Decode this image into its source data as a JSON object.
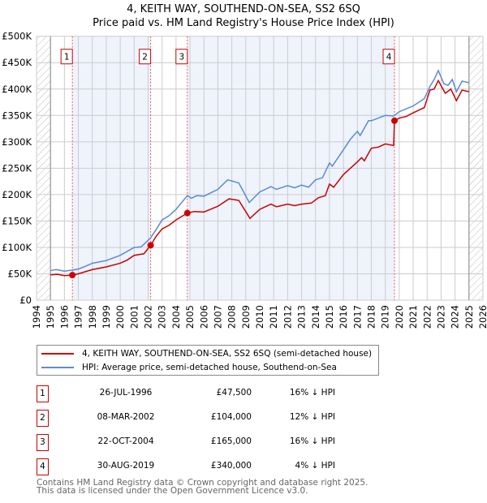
{
  "title_line1": "4, KEITH WAY, SOUTHEND-ON-SEA, SS2 6SQ",
  "title_line2": "Price paid vs. HM Land Registry's House Price Index (HPI)",
  "chart_data": {
    "type": "line",
    "ylim": [
      0,
      500000
    ],
    "xlim": [
      1994,
      2026
    ],
    "yticks": [
      {
        "v": 0,
        "label": "£0"
      },
      {
        "v": 50000,
        "label": "£50K"
      },
      {
        "v": 100000,
        "label": "£100K"
      },
      {
        "v": 150000,
        "label": "£150K"
      },
      {
        "v": 200000,
        "label": "£200K"
      },
      {
        "v": 250000,
        "label": "£250K"
      },
      {
        "v": 300000,
        "label": "£300K"
      },
      {
        "v": 350000,
        "label": "£350K"
      },
      {
        "v": 400000,
        "label": "£400K"
      },
      {
        "v": 450000,
        "label": "£450K"
      },
      {
        "v": 500000,
        "label": "£500K"
      }
    ],
    "xticks": [
      "1994",
      "1995",
      "1996",
      "1997",
      "1998",
      "1999",
      "2000",
      "2001",
      "2002",
      "2003",
      "2004",
      "2005",
      "2006",
      "2007",
      "2008",
      "2009",
      "2010",
      "2011",
      "2012",
      "2013",
      "2014",
      "2015",
      "2016",
      "2017",
      "2018",
      "2019",
      "2020",
      "2021",
      "2022",
      "2023",
      "2024",
      "2025",
      "2026"
    ],
    "series": [
      {
        "name": "4, KEITH WAY, SOUTHEND-ON-SEA, SS2 6SQ (semi-detached house)",
        "color": "#cc0000",
        "points": [
          [
            1995,
            48000
          ],
          [
            1995.5,
            49000
          ],
          [
            1996,
            46500
          ],
          [
            1996.57,
            47500
          ],
          [
            1997,
            50000
          ],
          [
            1997.5,
            54000
          ],
          [
            1998,
            58000
          ],
          [
            1999,
            63000
          ],
          [
            2000,
            70000
          ],
          [
            2000.5,
            76000
          ],
          [
            2001,
            85000
          ],
          [
            2001.7,
            88000
          ],
          [
            2002.18,
            104000
          ],
          [
            2002.6,
            122000
          ],
          [
            2003,
            135000
          ],
          [
            2003.5,
            142000
          ],
          [
            2004,
            152000
          ],
          [
            2004.5,
            160000
          ],
          [
            2004.81,
            165000
          ],
          [
            2005.3,
            168000
          ],
          [
            2006,
            167000
          ],
          [
            2007,
            178000
          ],
          [
            2007.8,
            192000
          ],
          [
            2008.5,
            189000
          ],
          [
            2009.3,
            155000
          ],
          [
            2010,
            172000
          ],
          [
            2010.8,
            182000
          ],
          [
            2011.2,
            177000
          ],
          [
            2012,
            182000
          ],
          [
            2012.5,
            179000
          ],
          [
            2013,
            182000
          ],
          [
            2013.7,
            184000
          ],
          [
            2014.2,
            194000
          ],
          [
            2014.7,
            198000
          ],
          [
            2015,
            220000
          ],
          [
            2015.3,
            214000
          ],
          [
            2016,
            238000
          ],
          [
            2016.5,
            250000
          ],
          [
            2017,
            262000
          ],
          [
            2017.3,
            270000
          ],
          [
            2017.5,
            264000
          ],
          [
            2018,
            288000
          ],
          [
            2018.5,
            290000
          ],
          [
            2019,
            296000
          ],
          [
            2019.6,
            293000
          ],
          [
            2019.66,
            340000
          ],
          [
            2020,
            345000
          ],
          [
            2020.5,
            348000
          ],
          [
            2021,
            355000
          ],
          [
            2021.8,
            365000
          ],
          [
            2022.2,
            398000
          ],
          [
            2022.5,
            400000
          ],
          [
            2022.8,
            416000
          ],
          [
            2023.3,
            392000
          ],
          [
            2023.7,
            400000
          ],
          [
            2024.1,
            378000
          ],
          [
            2024.5,
            398000
          ],
          [
            2025,
            395000
          ]
        ]
      },
      {
        "name": "HPI: Average price, semi-detached house, Southend-on-Sea",
        "color": "#5b8bd0",
        "points": [
          [
            1995,
            56000
          ],
          [
            1995.4,
            58000
          ],
          [
            1996,
            55000
          ],
          [
            1996.57,
            57000
          ],
          [
            1997,
            59000
          ],
          [
            1997.5,
            64000
          ],
          [
            1998,
            70000
          ],
          [
            1999,
            75000
          ],
          [
            2000,
            85000
          ],
          [
            2001,
            100000
          ],
          [
            2001.5,
            101000
          ],
          [
            2002.18,
            118000
          ],
          [
            2002.6,
            135000
          ],
          [
            2003,
            152000
          ],
          [
            2003.5,
            160000
          ],
          [
            2004,
            172000
          ],
          [
            2004.81,
            198000
          ],
          [
            2005.1,
            193000
          ],
          [
            2005.5,
            198000
          ],
          [
            2006,
            197000
          ],
          [
            2007,
            210000
          ],
          [
            2007.7,
            228000
          ],
          [
            2008.5,
            222000
          ],
          [
            2009.25,
            185000
          ],
          [
            2010,
            205000
          ],
          [
            2010.8,
            215000
          ],
          [
            2011.2,
            210000
          ],
          [
            2012,
            217000
          ],
          [
            2012.5,
            213000
          ],
          [
            2013,
            218000
          ],
          [
            2013.5,
            214000
          ],
          [
            2014,
            228000
          ],
          [
            2014.5,
            232000
          ],
          [
            2015,
            260000
          ],
          [
            2015.2,
            254000
          ],
          [
            2016,
            285000
          ],
          [
            2016.5,
            305000
          ],
          [
            2017,
            320000
          ],
          [
            2017.2,
            312000
          ],
          [
            2017.8,
            340000
          ],
          [
            2018,
            340000
          ],
          [
            2018.5,
            345000
          ],
          [
            2019,
            350000
          ],
          [
            2019.6,
            349000
          ],
          [
            2020,
            357000
          ],
          [
            2021,
            368000
          ],
          [
            2021.8,
            382000
          ],
          [
            2022.2,
            405000
          ],
          [
            2022.5,
            418000
          ],
          [
            2022.8,
            435000
          ],
          [
            2023.2,
            410000
          ],
          [
            2023.5,
            407000
          ],
          [
            2023.8,
            418000
          ],
          [
            2024.1,
            395000
          ],
          [
            2024.5,
            415000
          ],
          [
            2025,
            412000
          ]
        ]
      }
    ],
    "sales": [
      {
        "n": "1",
        "x": 1996.57,
        "y": 47500
      },
      {
        "n": "2",
        "x": 2002.18,
        "y": 104000
      },
      {
        "n": "3",
        "x": 2004.81,
        "y": 165000
      },
      {
        "n": "4",
        "x": 2019.66,
        "y": 340000
      }
    ],
    "shaded": [
      [
        1996.57,
        2002.18
      ],
      [
        2004.81,
        2019.66
      ]
    ],
    "hatched": [
      [
        1994,
        1995
      ],
      [
        2025,
        2026
      ]
    ]
  },
  "legend": {
    "property": "4, KEITH WAY, SOUTHEND-ON-SEA, SS2 6SQ (semi-detached house)",
    "hpi": "HPI: Average price, semi-detached house, Southend-on-Sea"
  },
  "table": [
    {
      "n": "1",
      "date": "26-JUL-1996",
      "price": "£47,500",
      "hpi": "16% ↓ HPI"
    },
    {
      "n": "2",
      "date": "08-MAR-2002",
      "price": "£104,000",
      "hpi": "12% ↓ HPI"
    },
    {
      "n": "3",
      "date": "22-OCT-2004",
      "price": "£165,000",
      "hpi": "16% ↓ HPI"
    },
    {
      "n": "4",
      "date": "30-AUG-2019",
      "price": "£340,000",
      "hpi": "4% ↓ HPI"
    }
  ],
  "footer1": "Contains HM Land Registry data © Crown copyright and database right 2025.",
  "footer2": "This data is licensed under the Open Government Licence v3.0."
}
